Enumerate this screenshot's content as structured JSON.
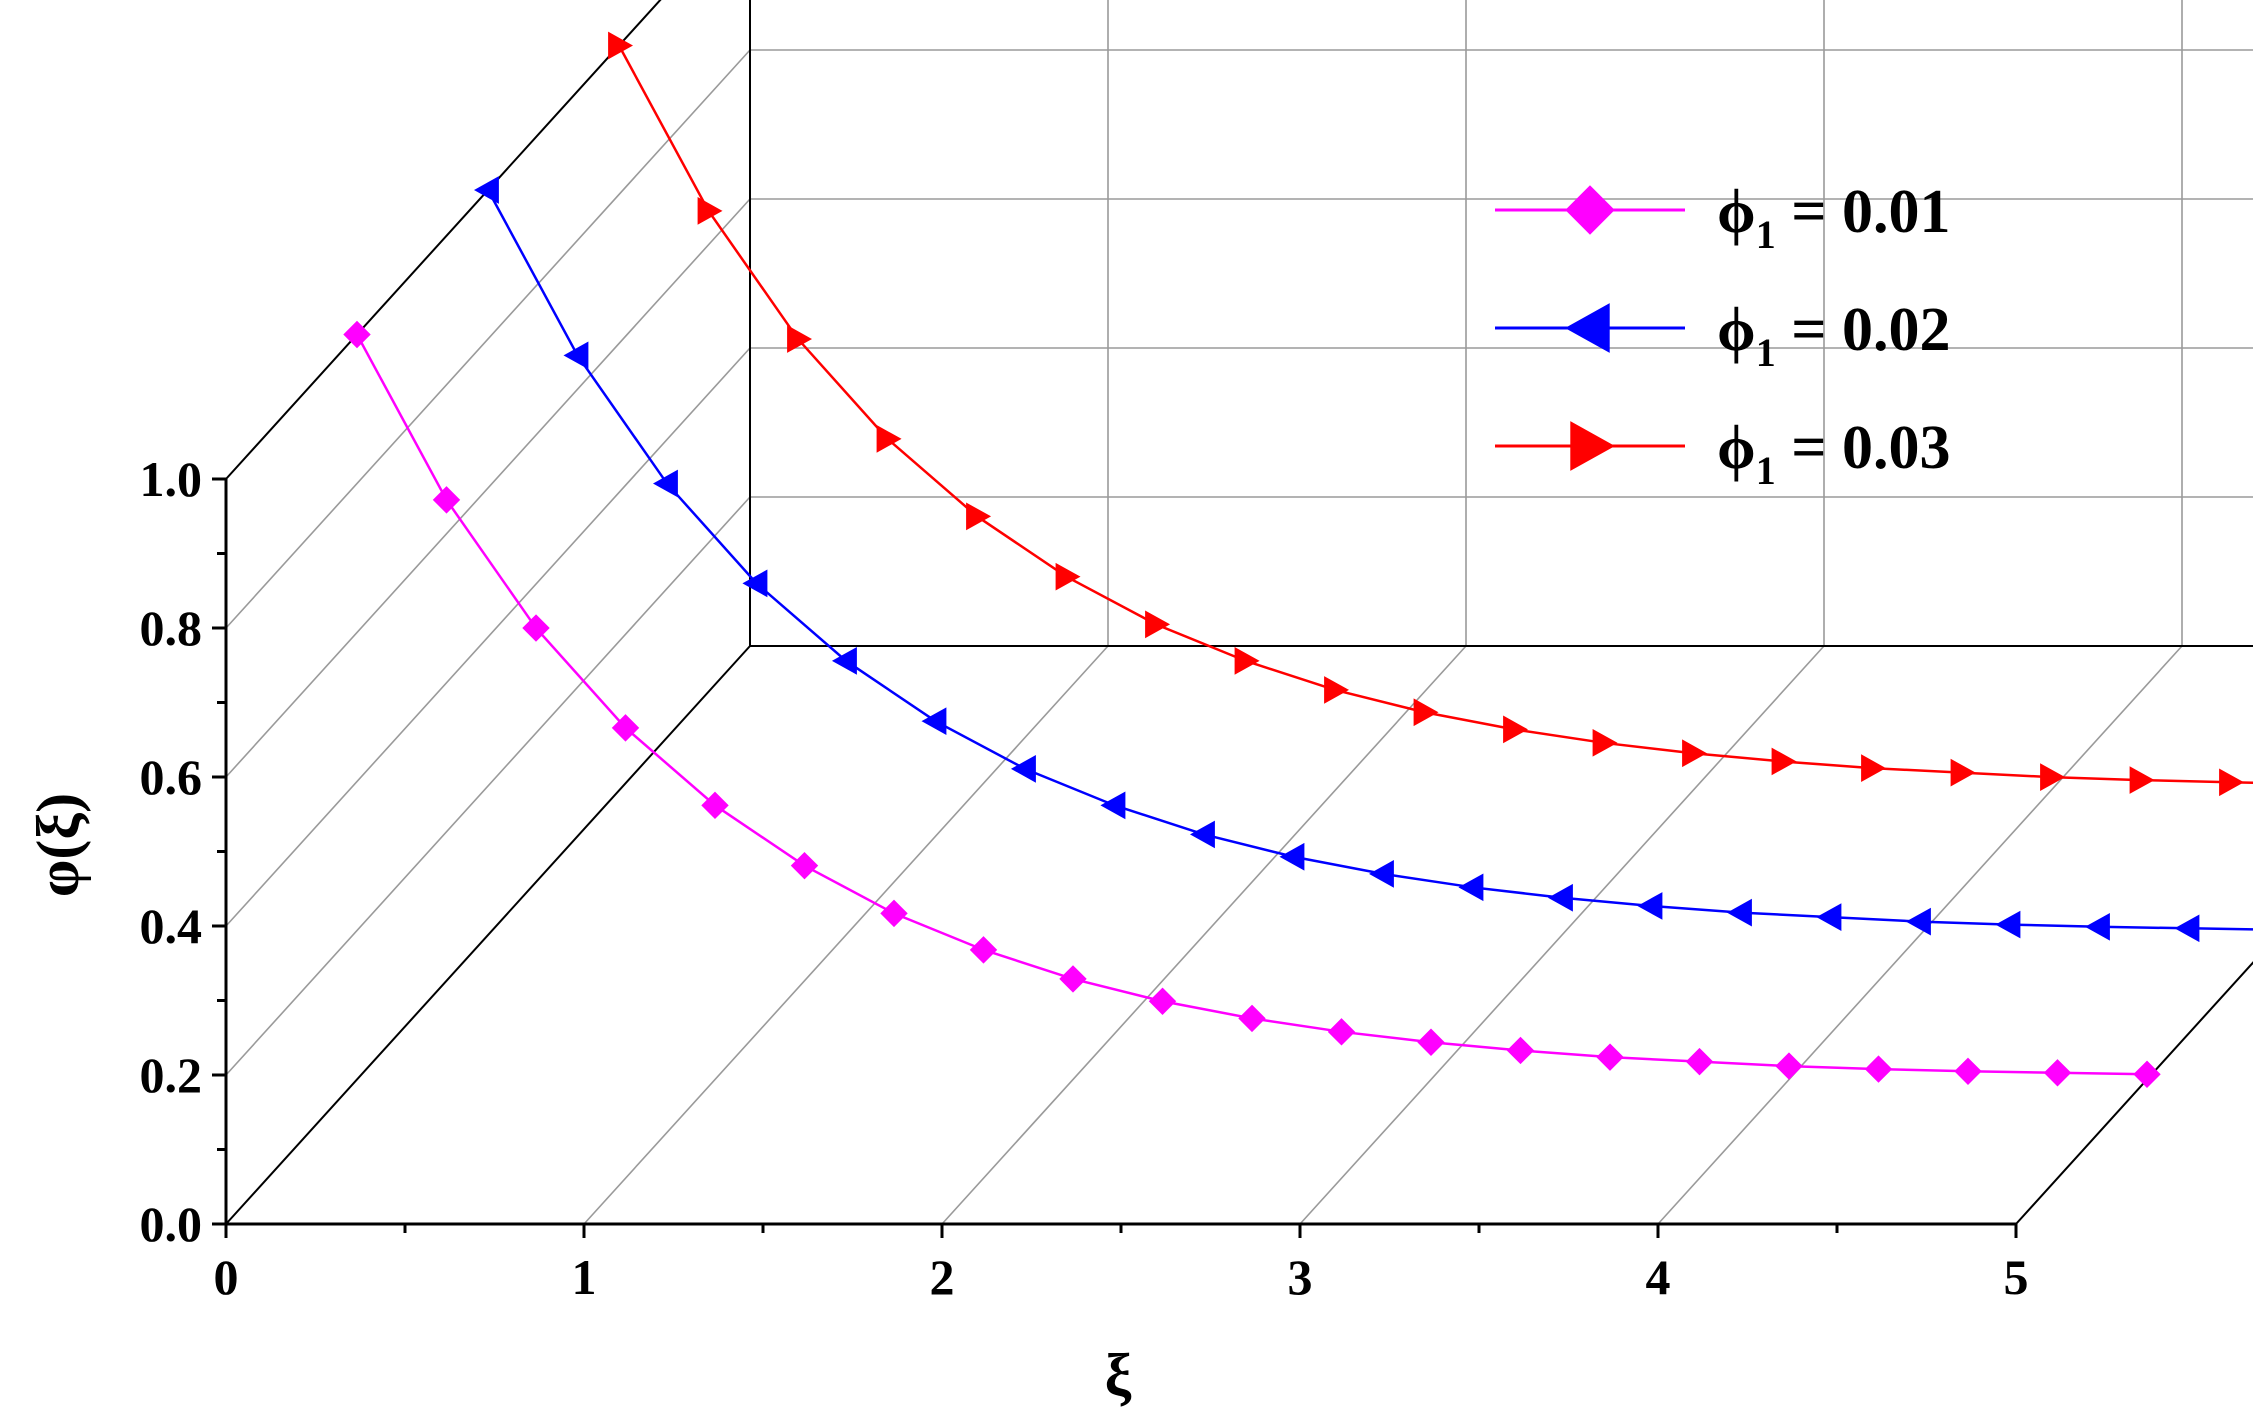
{
  "chart_data": {
    "type": "line",
    "xlabel": "ξ",
    "ylabel": "φ(ξ)",
    "xlim": [
      0,
      5
    ],
    "ylim": [
      0,
      1
    ],
    "x_ticks": [
      "0",
      "1",
      "2",
      "3",
      "4",
      "5"
    ],
    "y_ticks": [
      "0.0",
      "0.2",
      "0.4",
      "0.6",
      "0.8",
      "1.0"
    ],
    "grid": true,
    "legend_position": "top-right",
    "x": [
      0,
      0.25,
      0.5,
      0.75,
      1,
      1.25,
      1.5,
      1.75,
      2,
      2.25,
      2.5,
      2.75,
      3,
      3.25,
      3.5,
      3.75,
      4,
      4.25,
      4.5,
      4.75,
      5
    ],
    "series": [
      {
        "name": "φ1 = 0.01",
        "label_main": "ϕ",
        "label_sub": "1",
        "label_value": " = 0.01",
        "color": "#ff00ff",
        "marker": "diamond",
        "depth": 0,
        "values": [
          1.0,
          0.778,
          0.606,
          0.472,
          0.368,
          0.287,
          0.223,
          0.174,
          0.135,
          0.105,
          0.082,
          0.064,
          0.05,
          0.039,
          0.03,
          0.024,
          0.018,
          0.014,
          0.011,
          0.009,
          0.007
        ]
      },
      {
        "name": "φ1 = 0.02",
        "label_main": "ϕ",
        "label_sub": "1",
        "label_value": " = 0.02",
        "color": "#0000ff",
        "marker": "triangle-left",
        "depth": 1,
        "values": [
          1.0,
          0.778,
          0.606,
          0.472,
          0.368,
          0.287,
          0.223,
          0.174,
          0.135,
          0.105,
          0.082,
          0.064,
          0.05,
          0.039,
          0.03,
          0.024,
          0.018,
          0.014,
          0.011,
          0.009,
          0.007
        ]
      },
      {
        "name": "φ1 = 0.03",
        "label_main": "ϕ",
        "label_sub": "1",
        "label_value": " = 0.03",
        "color": "#ff0000",
        "marker": "triangle-right",
        "depth": 2,
        "values": [
          1.0,
          0.778,
          0.606,
          0.472,
          0.368,
          0.287,
          0.223,
          0.174,
          0.135,
          0.105,
          0.082,
          0.064,
          0.05,
          0.039,
          0.03,
          0.024,
          0.018,
          0.014,
          0.011,
          0.009,
          0.007
        ]
      }
    ]
  }
}
